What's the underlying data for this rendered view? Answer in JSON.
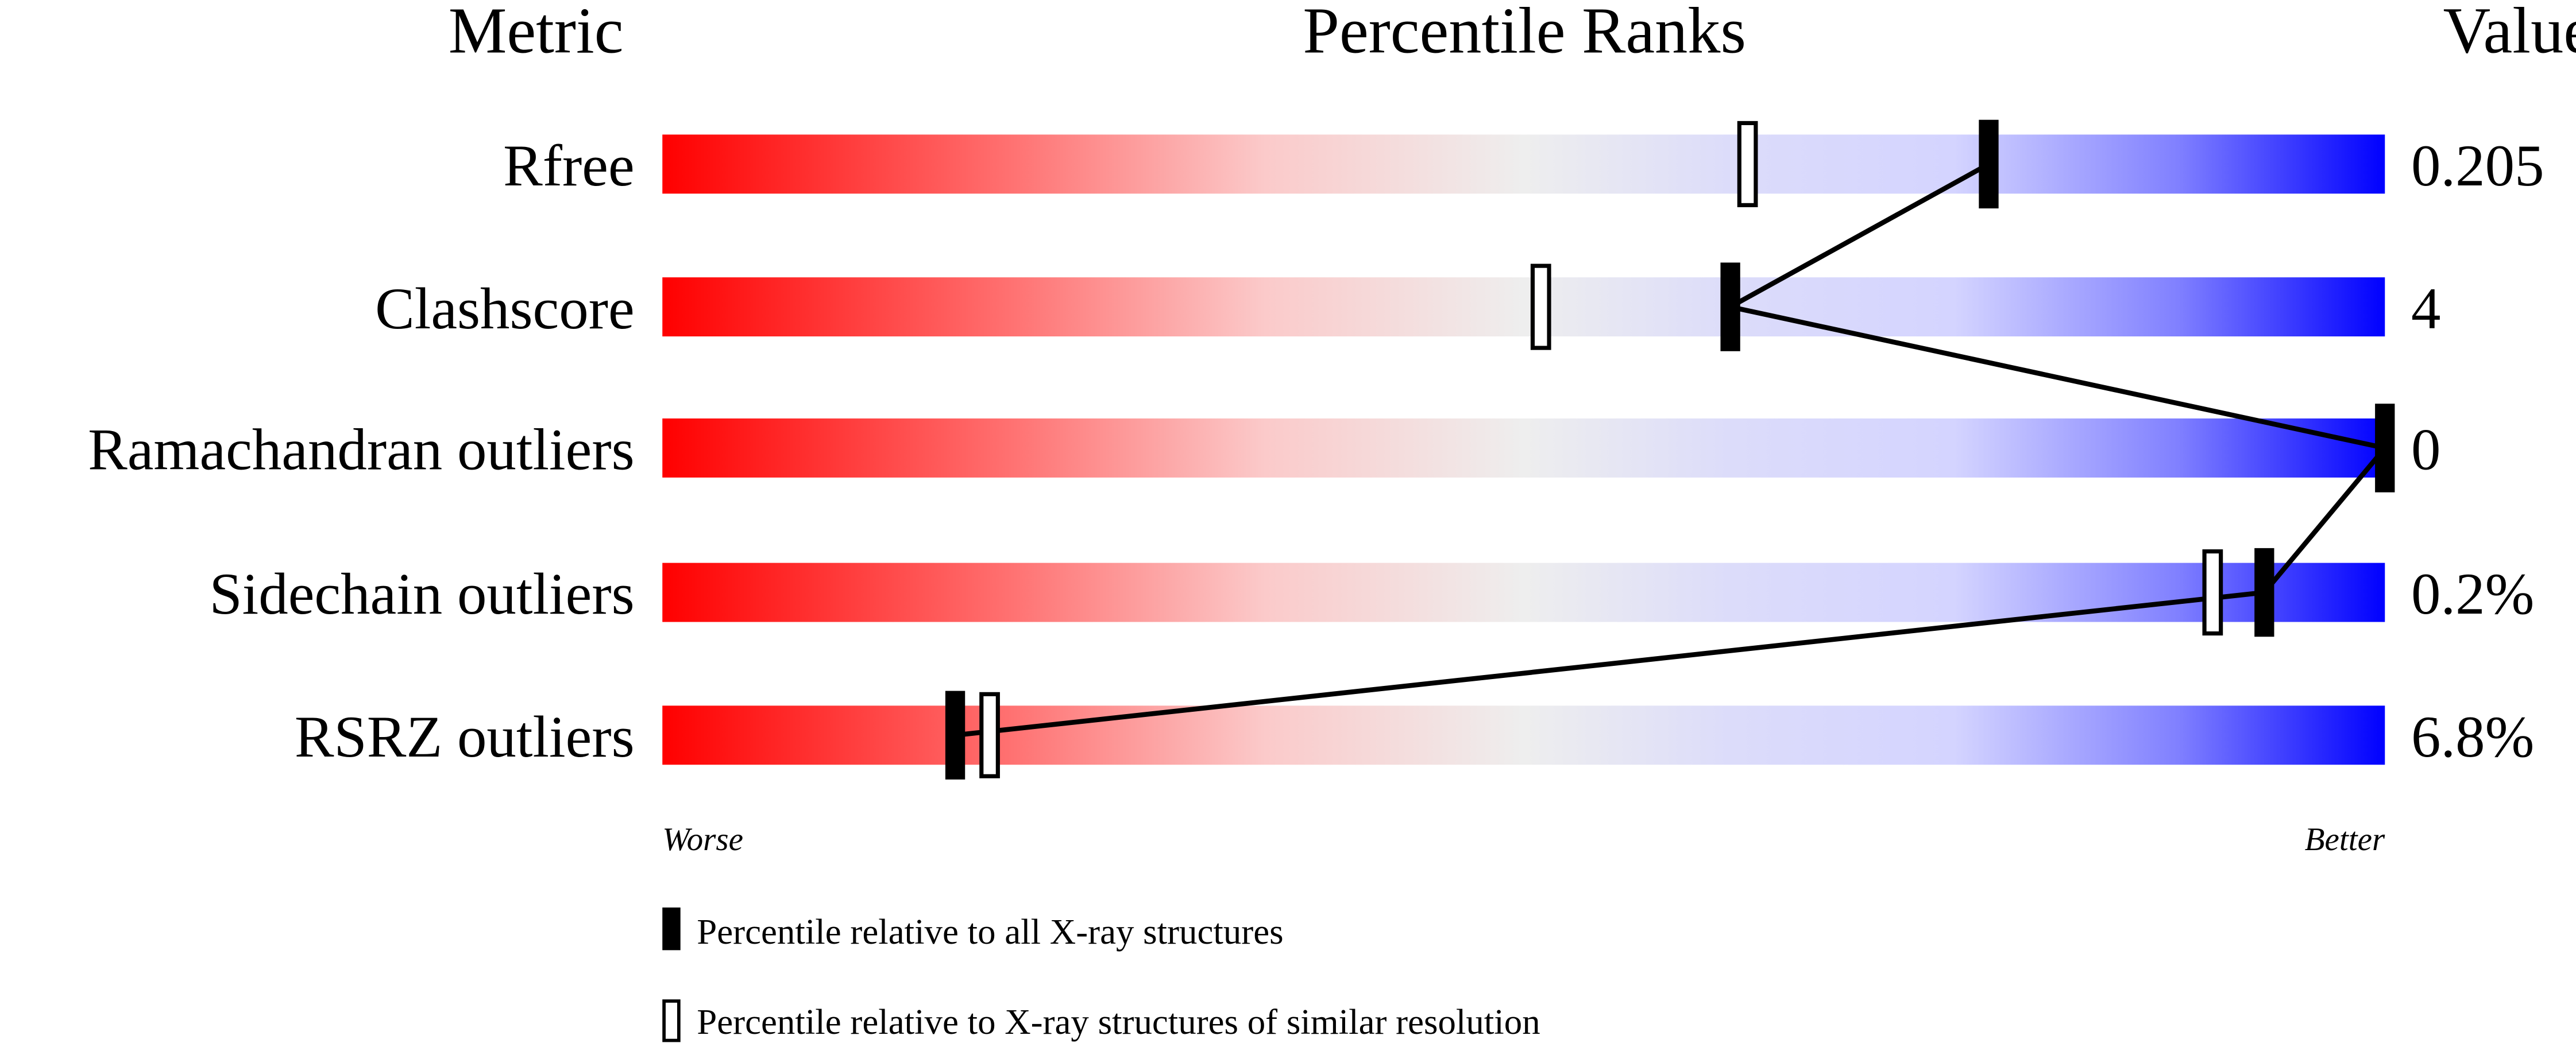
{
  "chart_data": {
    "type": "percentile-bar",
    "headers": {
      "metric": "Metric",
      "ranks": "Percentile Ranks",
      "value": "Value"
    },
    "xlim": [
      0,
      100
    ],
    "axis_labels": {
      "left": "Worse",
      "right": "Better"
    },
    "gradient_colors": {
      "worse": "#ff0000",
      "middle": "#eeeeee",
      "better": "#0000ff"
    },
    "rows": [
      {
        "metric": "Rfree",
        "value": "0.205",
        "percentile_all": 77,
        "percentile_similar": 63
      },
      {
        "metric": "Clashscore",
        "value": "4",
        "percentile_all": 62,
        "percentile_similar": 51
      },
      {
        "metric": "Ramachandran outliers",
        "value": "0",
        "percentile_all": 100,
        "percentile_similar": null
      },
      {
        "metric": "Sidechain outliers",
        "value": "0.2%",
        "percentile_all": 93,
        "percentile_similar": 90
      },
      {
        "metric": "RSRZ outliers",
        "value": "6.8%",
        "percentile_all": 17,
        "percentile_similar": 19
      }
    ],
    "legend": [
      {
        "marker": "filled",
        "label": "Percentile relative to all X-ray structures"
      },
      {
        "marker": "open",
        "label": "Percentile relative to X-ray structures of similar resolution"
      }
    ]
  }
}
